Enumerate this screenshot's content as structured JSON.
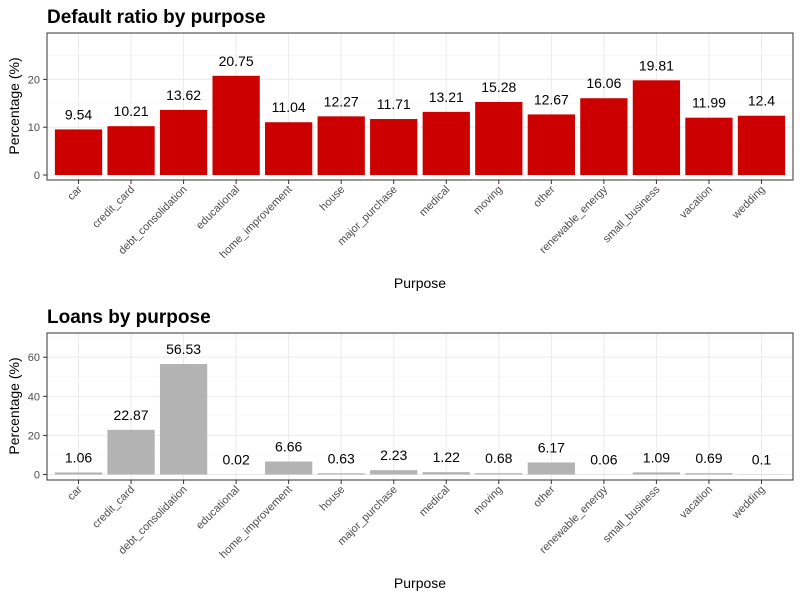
{
  "chart_data": [
    {
      "type": "bar",
      "title": "Default ratio by purpose",
      "xlabel": "Purpose",
      "ylabel": "Percentage (%)",
      "categories": [
        "car",
        "credit_card",
        "debt_consolidation",
        "educational",
        "home_improvement",
        "house",
        "major_purchase",
        "medical",
        "moving",
        "other",
        "renewable_energy",
        "small_business",
        "vacation",
        "wedding"
      ],
      "values": [
        9.54,
        10.21,
        13.62,
        20.75,
        11.04,
        12.27,
        11.71,
        13.21,
        15.28,
        12.67,
        16.06,
        19.81,
        11.99,
        12.4
      ],
      "value_labels": [
        "9.54",
        "10.21",
        "13.62",
        "20.75",
        "11.04",
        "12.27",
        "11.71",
        "13.21",
        "15.28",
        "12.67",
        "16.06",
        "19.81",
        "11.99",
        "12.4"
      ],
      "ylim": [
        -1.04,
        29.7
      ],
      "yticks": [
        0,
        10,
        20
      ],
      "ytick_labels": [
        "0",
        "10",
        "20"
      ],
      "grid": true,
      "bar_color": "#cd0000"
    },
    {
      "type": "bar",
      "title": "Loans by purpose",
      "xlabel": "Purpose",
      "ylabel": "Percentage (%)",
      "categories": [
        "car",
        "credit_card",
        "debt_consolidation",
        "educational",
        "home_improvement",
        "house",
        "major_purchase",
        "medical",
        "moving",
        "other",
        "renewable_energy",
        "small_business",
        "vacation",
        "wedding"
      ],
      "values": [
        1.06,
        22.87,
        56.53,
        0.02,
        6.66,
        0.63,
        2.23,
        1.22,
        0.68,
        6.17,
        0.06,
        1.09,
        0.69,
        0.1
      ],
      "value_labels": [
        "1.06",
        "22.87",
        "56.53",
        "0.02",
        "6.66",
        "0.63",
        "2.23",
        "1.22",
        "0.68",
        "6.17",
        "0.06",
        "1.09",
        "0.69",
        "0.1"
      ],
      "ylim": [
        -2.8,
        72.4
      ],
      "yticks": [
        0,
        20,
        40,
        60
      ],
      "ytick_labels": [
        "0",
        "20",
        "40",
        "60"
      ],
      "grid": true,
      "bar_color": "#b3b3b3"
    }
  ]
}
